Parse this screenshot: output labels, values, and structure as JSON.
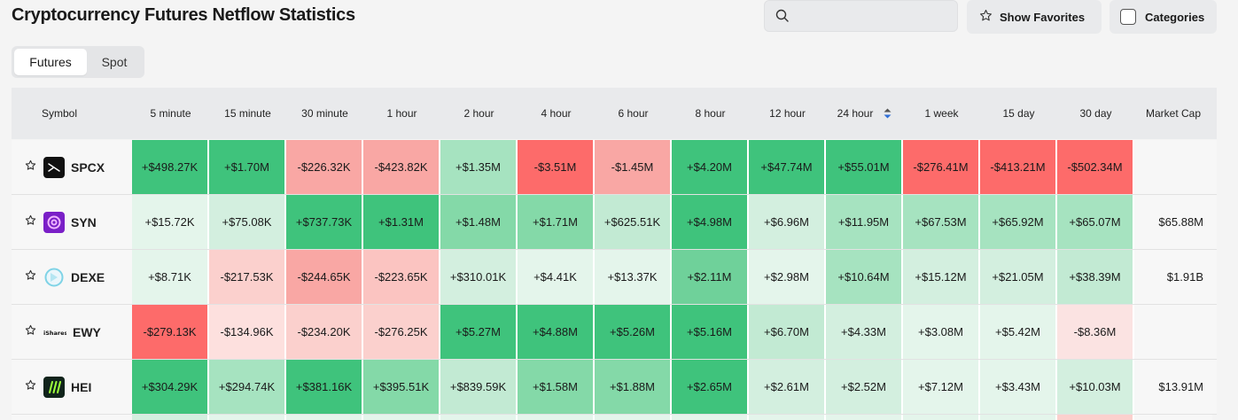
{
  "page": {
    "title": "Cryptocurrency Futures Netflow Statistics"
  },
  "toolbar": {
    "search_placeholder": "",
    "show_favorites_label": "Show Favorites",
    "categories_label": "Categories"
  },
  "tabs": [
    {
      "label": "Futures",
      "active": true
    },
    {
      "label": "Spot",
      "active": false
    }
  ],
  "table": {
    "headers": [
      "Symbol",
      "5 minute",
      "15 minute",
      "30 minute",
      "1 hour",
      "2 hour",
      "4 hour",
      "6 hour",
      "8 hour",
      "12 hour",
      "24 hour",
      "1 week",
      "15 day",
      "30 day",
      "Market Cap"
    ],
    "sorted_column": "24 hour",
    "rows": [
      {
        "symbol": "SPCX",
        "logo": "spcx-logo",
        "values": [
          "+$498.27K",
          "+$1.70M",
          "-$226.32K",
          "-$423.82K",
          "+$1.35M",
          "-$3.51M",
          "-$1.45M",
          "+$4.20M",
          "+$47.74M",
          "+$55.01M",
          "-$276.41M",
          "-$413.21M",
          "-$502.34M"
        ],
        "colors": [
          "#3fc37c",
          "#3fc37c",
          "#f9a7a4",
          "#f9a7a4",
          "#a6e3c0",
          "#fd6b6a",
          "#f9a7a4",
          "#3fc37c",
          "#3fc37c",
          "#3fc37c",
          "#fd6b6a",
          "#fd6b6a",
          "#fd6b6a"
        ],
        "market_cap": ""
      },
      {
        "symbol": "SYN",
        "logo": "syn-logo",
        "values": [
          "+$15.72K",
          "+$75.08K",
          "+$737.73K",
          "+$1.31M",
          "+$1.48M",
          "+$1.71M",
          "+$625.51K",
          "+$4.98M",
          "+$6.96M",
          "+$11.95M",
          "+$67.53M",
          "+$65.92M",
          "+$65.07M"
        ],
        "colors": [
          "#e4f5eb",
          "#d3efdf",
          "#3fc37c",
          "#3fc37c",
          "#84d9a8",
          "#84d9a8",
          "#c2ead3",
          "#3fc37c",
          "#d3efdf",
          "#a6e3c0",
          "#a6e3c0",
          "#a6e3c0",
          "#a6e3c0"
        ],
        "market_cap": "$65.88M"
      },
      {
        "symbol": "DEXE",
        "logo": "dexe-logo",
        "values": [
          "+$8.71K",
          "-$217.53K",
          "-$244.65K",
          "-$223.65K",
          "+$310.01K",
          "+$4.41K",
          "+$13.37K",
          "+$2.11M",
          "+$2.98M",
          "+$10.64M",
          "+$15.12M",
          "+$21.05M",
          "+$38.39M"
        ],
        "colors": [
          "#e4f5eb",
          "#fbd0cd",
          "#f9a7a4",
          "#fbc4c1",
          "#d3efdf",
          "#e4f5eb",
          "#e4f5eb",
          "#6fd19a",
          "#e4f5eb",
          "#a6e3c0",
          "#d3efdf",
          "#d3efdf",
          "#c2ead3"
        ],
        "market_cap": "$1.91B"
      },
      {
        "symbol": "EWY",
        "logo": "ishares-logo",
        "values": [
          "-$279.13K",
          "-$134.96K",
          "-$234.20K",
          "-$276.25K",
          "+$5.27M",
          "+$4.88M",
          "+$5.26M",
          "+$5.16M",
          "+$6.70M",
          "+$4.33M",
          "+$3.08M",
          "+$5.42M",
          "-$8.36M"
        ],
        "colors": [
          "#fd6b6a",
          "#fde0de",
          "#fbd0cd",
          "#fbd0cd",
          "#3fc37c",
          "#3fc37c",
          "#3fc37c",
          "#3fc37c",
          "#c2ead3",
          "#d3efdf",
          "#e4f5eb",
          "#e4f5eb",
          "#fbe3e2"
        ],
        "market_cap": ""
      },
      {
        "symbol": "HEI",
        "logo": "hei-logo",
        "values": [
          "+$304.29K",
          "+$294.74K",
          "+$381.16K",
          "+$395.51K",
          "+$839.59K",
          "+$1.58M",
          "+$1.88M",
          "+$2.65M",
          "+$2.61M",
          "+$2.52M",
          "+$7.12M",
          "+$3.43M",
          "+$10.03M"
        ],
        "colors": [
          "#3fc37c",
          "#a6e3c0",
          "#3fc37c",
          "#84d9a8",
          "#c2ead3",
          "#84d9a8",
          "#84d9a8",
          "#3fc37c",
          "#d3efdf",
          "#d3efdf",
          "#e4f5eb",
          "#e4f5eb",
          "#d3efdf"
        ],
        "market_cap": "$13.91M"
      }
    ],
    "partial_row_colors": [
      "#f7f7f7",
      "#d3efdf",
      "#e4f5eb",
      "#e4f5eb",
      "#e4f5eb",
      "#e4f5eb",
      "#e4f5eb",
      "#e4f5eb",
      "#e4f5eb",
      "#e4f5eb",
      "#e4f5eb",
      "#e4f5eb",
      "#e4f5eb",
      "#fbd0cd",
      "#f7f7f7"
    ]
  }
}
